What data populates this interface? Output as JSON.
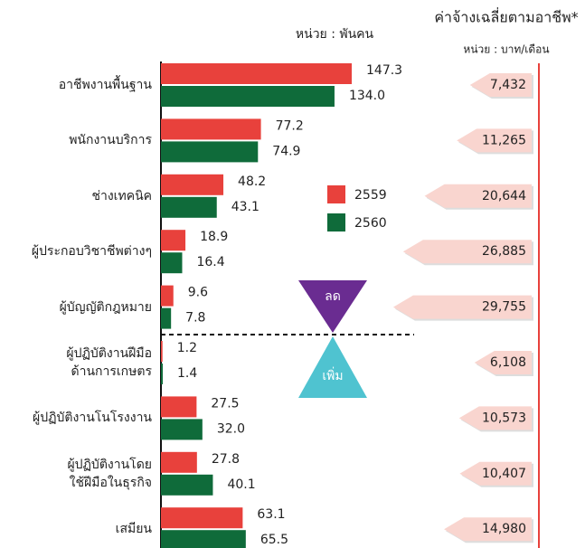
{
  "chart_data": [
    {
      "type": "bar",
      "unit": "หน่วย : พันคน",
      "categories": [
        "อาชีพงานพื้นฐาน",
        "พนักงานบริการ",
        "ช่างเทคนิค",
        "ผู้ประกอบวิชาชีพต่างๆ",
        "ผู้บัญญัติกฎหมาย",
        "ผู้ปฏิบัติงานฝีมือ\nด้านการเกษตร",
        "ผู้ปฏิบัติงานโนโรงงาน",
        "ผู้ปฏิบัติงานโดย\nใช้ฝีมือในธุรกิจ",
        "เสมียน"
      ],
      "series": [
        {
          "name": "2559",
          "color": "#e8413c",
          "values": [
            147.3,
            77.2,
            48.2,
            18.9,
            9.6,
            1.2,
            27.5,
            27.8,
            63.1
          ]
        },
        {
          "name": "2560",
          "color": "#0f6b3a",
          "values": [
            134.0,
            74.9,
            43.1,
            16.4,
            7.8,
            1.4,
            32.0,
            40.1,
            65.5
          ],
          "value_labels": [
            "134.0",
            "74.9",
            "43.1",
            "16.4",
            "7.8",
            "1.4",
            "32.0",
            "40.1",
            "65.5"
          ]
        }
      ],
      "annotations": [
        {
          "text": "ลด",
          "color": "#6a2c91"
        },
        {
          "text": "เพิ่ม",
          "color": "#4fc3d0"
        }
      ]
    },
    {
      "type": "arrow",
      "title": "ค่าจ้างเฉลี่ยตามอาชีพ*",
      "unit": "หน่วย : บาท/เดือน",
      "color": "#f9d5cf",
      "values": [
        7432,
        11265,
        20644,
        26885,
        29755,
        6108,
        10573,
        10407,
        14980
      ],
      "value_labels": [
        "7,432",
        "11,265",
        "20,644",
        "26,885",
        "29,755",
        "6,108",
        "10,573",
        "10,407",
        "14,980"
      ]
    }
  ]
}
